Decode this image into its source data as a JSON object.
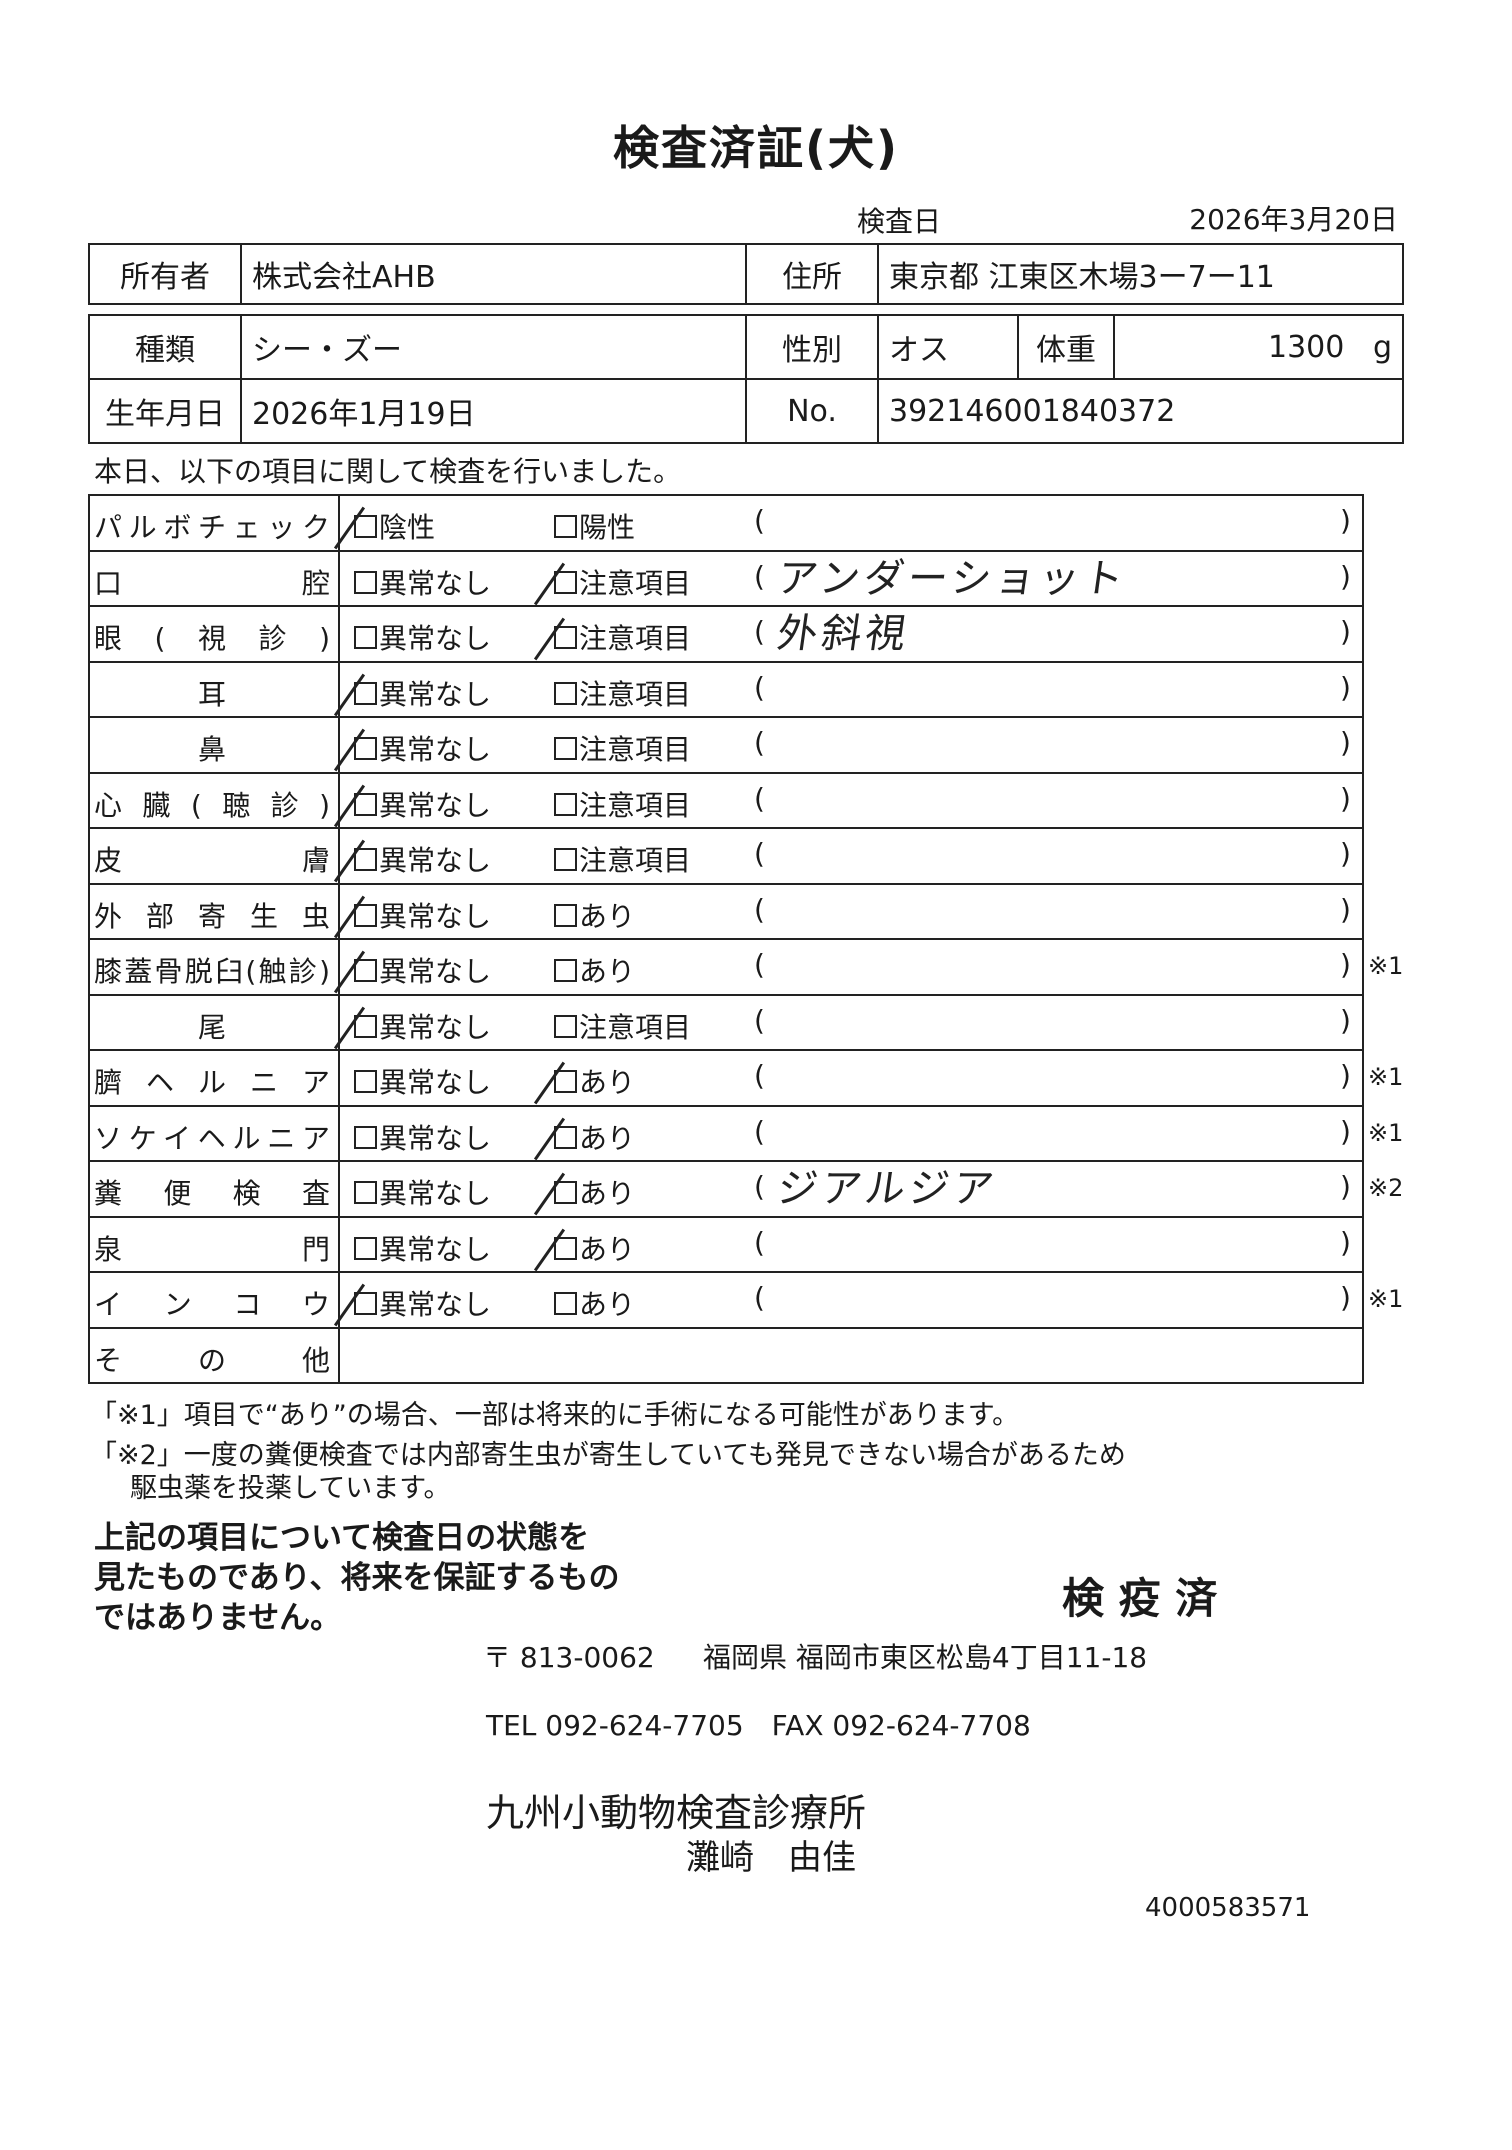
{
  "title": "検査済証(犬)",
  "inspection_date_label": "検査日",
  "inspection_date": "2026年3月20日",
  "owner": {
    "label": "所有者",
    "value": "株式会社AHB",
    "address_label": "住所",
    "address": "東京都 江東区木場3ー7ー11"
  },
  "pet": {
    "breed_label": "種類",
    "breed": "シー・ズー",
    "sex_label": "性別",
    "sex": "オス",
    "weight_label": "体重",
    "weight": "1300",
    "weight_unit": "g",
    "birth_label": "生年月日",
    "birth": "2026年1月19日",
    "no_label": "No.",
    "no": "392146001840372"
  },
  "intro": "本日、以下の項目に関して検査を行いました。",
  "checks": [
    {
      "label": "パルボチェック",
      "center": false,
      "opt1": "陰性",
      "opt2": "陽性",
      "checked": 1,
      "note": "",
      "mark": ""
    },
    {
      "label": "口腔",
      "center": false,
      "opt1": "異常なし",
      "opt2": "注意項目",
      "checked": 2,
      "note": "アンダーショット",
      "mark": ""
    },
    {
      "label": "眼(視診)",
      "center": false,
      "opt1": "異常なし",
      "opt2": "注意項目",
      "checked": 2,
      "note": "外斜視",
      "mark": ""
    },
    {
      "label": "耳",
      "center": true,
      "opt1": "異常なし",
      "opt2": "注意項目",
      "checked": 1,
      "note": "",
      "mark": ""
    },
    {
      "label": "鼻",
      "center": true,
      "opt1": "異常なし",
      "opt2": "注意項目",
      "checked": 1,
      "note": "",
      "mark": ""
    },
    {
      "label": "心臓(聴診)",
      "center": false,
      "opt1": "異常なし",
      "opt2": "注意項目",
      "checked": 1,
      "note": "",
      "mark": ""
    },
    {
      "label": "皮膚",
      "center": false,
      "opt1": "異常なし",
      "opt2": "注意項目",
      "checked": 1,
      "note": "",
      "mark": ""
    },
    {
      "label": "外部寄生虫",
      "center": false,
      "opt1": "異常なし",
      "opt2": "あり",
      "checked": 1,
      "note": "",
      "mark": ""
    },
    {
      "label": "膝蓋骨脱臼(触診)",
      "center": false,
      "opt1": "異常なし",
      "opt2": "あり",
      "checked": 1,
      "note": "",
      "mark": "※1"
    },
    {
      "label": "尾",
      "center": true,
      "opt1": "異常なし",
      "opt2": "注意項目",
      "checked": 1,
      "note": "",
      "mark": ""
    },
    {
      "label": "臍ヘルニア",
      "center": false,
      "opt1": "異常なし",
      "opt2": "あり",
      "checked": 2,
      "note": "",
      "mark": "※1"
    },
    {
      "label": "ソケイヘルニア",
      "center": false,
      "opt1": "異常なし",
      "opt2": "あり",
      "checked": 2,
      "note": "",
      "mark": "※1"
    },
    {
      "label": "糞便検査",
      "center": false,
      "opt1": "異常なし",
      "opt2": "あり",
      "checked": 2,
      "note": "ジアルジア",
      "mark": "※2"
    },
    {
      "label": "泉門",
      "center": false,
      "opt1": "異常なし",
      "opt2": "あり",
      "checked": 2,
      "note": "",
      "mark": ""
    },
    {
      "label": "インコウ",
      "center": false,
      "opt1": "異常なし",
      "opt2": "あり",
      "checked": 1,
      "note": "",
      "mark": "※1"
    },
    {
      "label": "その他",
      "center": false,
      "opt1": "",
      "opt2": "",
      "checked": 0,
      "note": "",
      "mark": ""
    }
  ],
  "notes": [
    "「※1」項目で“あり”の場合、一部は将来的に手術になる可能性があります。",
    "「※2」一度の糞便検査では内部寄生虫が寄生していても発見できない場合があるため",
    "駆虫薬を投薬しています。"
  ],
  "disclaimer": [
    "上記の項目について検査日の状態を",
    "見たものであり、将来を保証するもの",
    "ではありません。"
  ],
  "stamp": "検 疫 済",
  "clinic": {
    "postal": "〒 813-0062",
    "address": "福岡県 福岡市東区松島4丁目11-18",
    "phone": "TEL 092-624-7705　FAX 092-624-7708",
    "name": "九州小動物検査診療所",
    "person": "灘崎　由佳"
  },
  "doc_number": "4000583571"
}
